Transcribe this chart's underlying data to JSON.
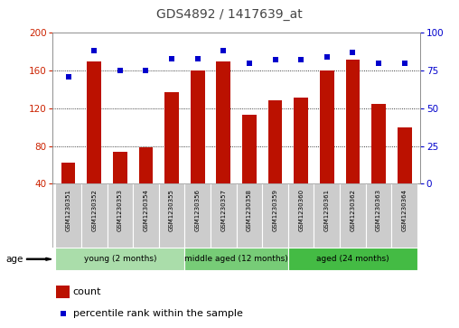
{
  "title": "GDS4892 / 1417639_at",
  "samples": [
    "GSM1230351",
    "GSM1230352",
    "GSM1230353",
    "GSM1230354",
    "GSM1230355",
    "GSM1230356",
    "GSM1230357",
    "GSM1230358",
    "GSM1230359",
    "GSM1230360",
    "GSM1230361",
    "GSM1230362",
    "GSM1230363",
    "GSM1230364"
  ],
  "counts": [
    62,
    170,
    74,
    79,
    137,
    160,
    170,
    113,
    128,
    131,
    160,
    172,
    125,
    100
  ],
  "percentiles": [
    71,
    88,
    75,
    75,
    83,
    83,
    88,
    80,
    82,
    82,
    84,
    87,
    80,
    80
  ],
  "groups": [
    {
      "label": "young (2 months)",
      "start": 0,
      "end": 4
    },
    {
      "label": "middle aged (12 months)",
      "start": 5,
      "end": 8
    },
    {
      "label": "aged (24 months)",
      "start": 9,
      "end": 13
    }
  ],
  "group_colors": [
    "#aaddaa",
    "#77cc77",
    "#44bb44"
  ],
  "ylim_left": [
    40,
    200
  ],
  "ylim_right": [
    0,
    100
  ],
  "yticks_left": [
    40,
    80,
    120,
    160,
    200
  ],
  "yticks_right": [
    0,
    25,
    50,
    75,
    100
  ],
  "bar_color": "#BB1100",
  "dot_color": "#0000CC",
  "title_color": "#444444",
  "left_tick_color": "#CC2200",
  "right_tick_color": "#0000CC",
  "background_color": "#ffffff",
  "xlabel": "age",
  "legend_count_label": "count",
  "legend_pct_label": "percentile rank within the sample",
  "sample_box_color": "#cccccc"
}
